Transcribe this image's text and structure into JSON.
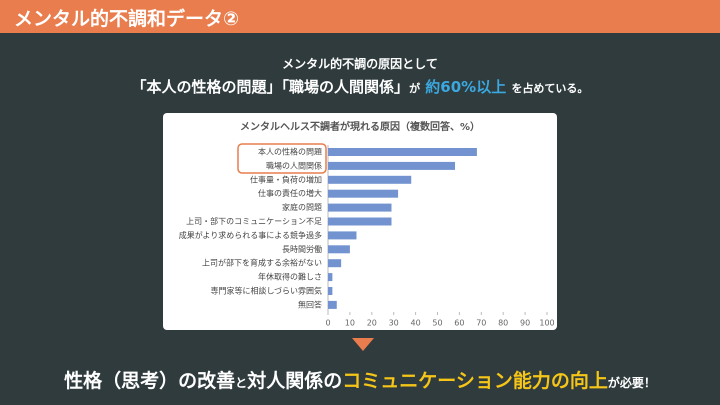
{
  "header": {
    "title": "メンタル的不調和データ②"
  },
  "intro": {
    "line1": "メンタル的不調の原因として",
    "line2": [
      "「本人の性格の問題」「職場の人間関係」",
      "が",
      "約60%以上",
      "を占めている。"
    ]
  },
  "chart_data": {
    "type": "hbar",
    "title": "メンタルヘルス不調者が現れる原因（複数回答、%）",
    "categories": [
      "本人の性格の問題",
      "職場の人間関係",
      "仕事量・負荷の増加",
      "仕事の責任の増大",
      "家庭の問題",
      "上司・部下のコミュニケーション不足",
      "成果がより求められる事による競争過多",
      "長時間労働",
      "上司が部下を育成する余裕がない",
      "年休取得の難しさ",
      "専門家等に相談しづらい雰囲気",
      "無回答"
    ],
    "values": [
      68,
      58,
      38,
      32,
      29,
      29,
      13,
      10,
      6,
      2,
      2,
      4
    ],
    "color": "#7393d0",
    "xlim": [
      0,
      100
    ],
    "xticks": [
      0,
      10,
      20,
      30,
      40,
      50,
      60,
      70,
      80,
      90,
      100
    ]
  },
  "conclusion": [
    "性格（思考）の改善",
    "と",
    "対人関係の",
    "コミュニケーション能力の向上",
    "が必要！"
  ]
}
